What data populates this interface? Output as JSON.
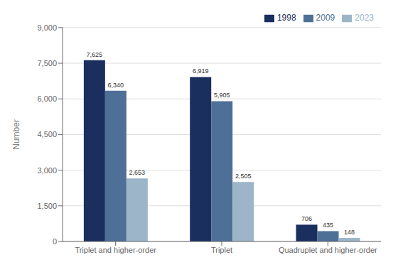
{
  "chart_data": {
    "type": "bar",
    "categories": [
      "Triplet and higher-order",
      "Triplet",
      "Quadruplet and higher-order"
    ],
    "series": [
      {
        "name": "1998",
        "color": "#1b2f5e",
        "values": [
          7625,
          6919,
          706
        ],
        "value_labels": [
          "7,625",
          "6,919",
          "706"
        ]
      },
      {
        "name": "2009",
        "color": "#4e7096",
        "values": [
          6340,
          5905,
          435
        ],
        "value_labels": [
          "6,340",
          "5,905",
          "435"
        ]
      },
      {
        "name": "2023",
        "color": "#9db5c8",
        "values": [
          2653,
          2505,
          148
        ],
        "value_labels": [
          "2,653",
          "2,505",
          "148"
        ]
      }
    ],
    "ylabel": "Number",
    "ylim": [
      0,
      9000
    ],
    "yticks": [
      0,
      {
        "value": 1500,
        "label": "1,500"
      },
      {
        "value": 3000,
        "label": "3,000"
      },
      {
        "value": 4500,
        "label": "4,500"
      },
      {
        "value": 6000,
        "label": "6,000"
      },
      {
        "value": 7500,
        "label": "7,500"
      },
      {
        "value": 9000,
        "label": "9,000"
      }
    ],
    "grid": true,
    "legend": "upper right",
    "data_labels": true
  }
}
